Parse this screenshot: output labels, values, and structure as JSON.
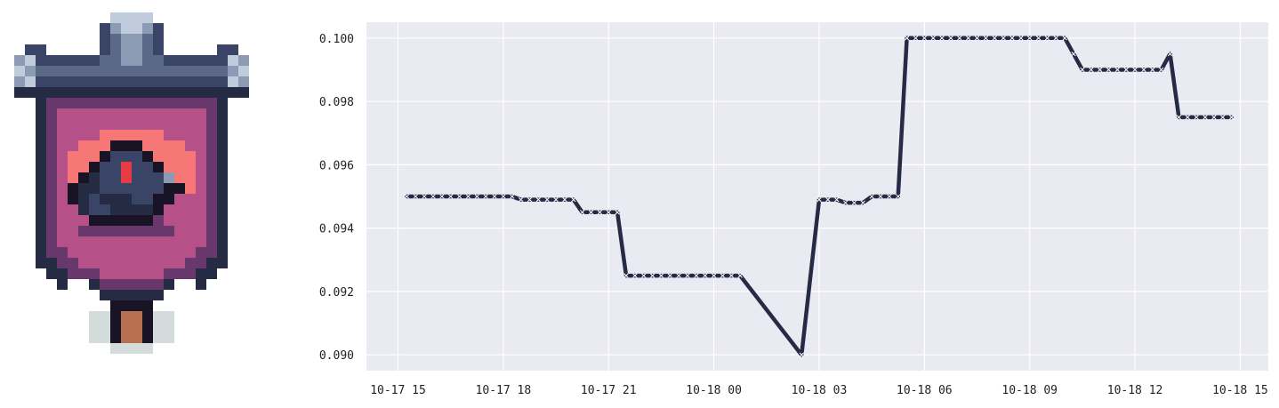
{
  "logo": {
    "name": "pixel-art-banner-emblem"
  },
  "colors": {
    "plot_bg": "#eaeaf2",
    "grid": "#ffffff",
    "line": "#262a45",
    "marker": "#ffffff"
  },
  "chart_data": {
    "type": "line",
    "title": "",
    "xlabel": "",
    "ylabel": "",
    "grid": true,
    "marker": "x",
    "x_ticks": [
      "10-17 15",
      "10-17 18",
      "10-17 21",
      "10-18 00",
      "10-18 03",
      "10-18 06",
      "10-18 09",
      "10-18 12",
      "10-18 15"
    ],
    "y_ticks": [
      "0.090",
      "0.092",
      "0.094",
      "0.096",
      "0.098",
      "0.100"
    ],
    "ylim": [
      0.0895,
      0.1005
    ],
    "xlim": [
      "2024-10-17 14:06",
      "2024-10-18 15:48"
    ],
    "series": [
      {
        "x": [
          "2024-10-17 15:15",
          "2024-10-17 15:30",
          "2024-10-17 15:45",
          "2024-10-17 16:00",
          "2024-10-17 16:15",
          "2024-10-17 16:30",
          "2024-10-17 16:45",
          "2024-10-17 17:00",
          "2024-10-17 17:15",
          "2024-10-17 17:30",
          "2024-10-17 17:45",
          "2024-10-17 18:00",
          "2024-10-17 18:15",
          "2024-10-17 18:30",
          "2024-10-17 18:45",
          "2024-10-17 19:00",
          "2024-10-17 19:15",
          "2024-10-17 19:30",
          "2024-10-17 19:45",
          "2024-10-17 20:00",
          "2024-10-17 20:15",
          "2024-10-17 20:30",
          "2024-10-17 20:45",
          "2024-10-17 21:00",
          "2024-10-17 21:15",
          "2024-10-17 21:30",
          "2024-10-17 21:45",
          "2024-10-17 22:00",
          "2024-10-17 22:15",
          "2024-10-17 22:30",
          "2024-10-17 22:45",
          "2024-10-17 23:00",
          "2024-10-17 23:15",
          "2024-10-17 23:30",
          "2024-10-17 23:45",
          "2024-10-18 00:00",
          "2024-10-18 00:15",
          "2024-10-18 00:30",
          "2024-10-18 00:45",
          "2024-10-18 02:30",
          "2024-10-18 03:00",
          "2024-10-18 03:15",
          "2024-10-18 03:30",
          "2024-10-18 03:45",
          "2024-10-18 04:00",
          "2024-10-18 04:15",
          "2024-10-18 04:30",
          "2024-10-18 04:45",
          "2024-10-18 05:00",
          "2024-10-18 05:15",
          "2024-10-18 05:30",
          "2024-10-18 05:45",
          "2024-10-18 06:00",
          "2024-10-18 06:15",
          "2024-10-18 06:30",
          "2024-10-18 06:45",
          "2024-10-18 07:00",
          "2024-10-18 07:15",
          "2024-10-18 07:30",
          "2024-10-18 07:45",
          "2024-10-18 08:00",
          "2024-10-18 08:15",
          "2024-10-18 08:30",
          "2024-10-18 08:45",
          "2024-10-18 09:00",
          "2024-10-18 09:15",
          "2024-10-18 09:30",
          "2024-10-18 09:45",
          "2024-10-18 10:00",
          "2024-10-18 10:15",
          "2024-10-18 10:30",
          "2024-10-18 10:45",
          "2024-10-18 11:00",
          "2024-10-18 11:15",
          "2024-10-18 11:30",
          "2024-10-18 11:45",
          "2024-10-18 12:00",
          "2024-10-18 12:15",
          "2024-10-18 12:30",
          "2024-10-18 12:45",
          "2024-10-18 13:00",
          "2024-10-18 13:15",
          "2024-10-18 13:30",
          "2024-10-18 13:45",
          "2024-10-18 14:00",
          "2024-10-18 14:15",
          "2024-10-18 14:30",
          "2024-10-18 14:45"
        ],
        "y": [
          0.095,
          0.095,
          0.095,
          0.095,
          0.095,
          0.095,
          0.095,
          0.095,
          0.095,
          0.095,
          0.095,
          0.095,
          0.095,
          0.0949,
          0.0949,
          0.0949,
          0.0949,
          0.0949,
          0.0949,
          0.0949,
          0.0945,
          0.0945,
          0.0945,
          0.0945,
          0.0945,
          0.0925,
          0.0925,
          0.0925,
          0.0925,
          0.0925,
          0.0925,
          0.0925,
          0.0925,
          0.0925,
          0.0925,
          0.0925,
          0.0925,
          0.0925,
          0.0925,
          0.09,
          0.0949,
          0.0949,
          0.0949,
          0.0948,
          0.0948,
          0.0948,
          0.095,
          0.095,
          0.095,
          0.095,
          0.1,
          0.1,
          0.1,
          0.1,
          0.1,
          0.1,
          0.1,
          0.1,
          0.1,
          0.1,
          0.1,
          0.1,
          0.1,
          0.1,
          0.1,
          0.1,
          0.1,
          0.1,
          0.1,
          0.0995,
          0.099,
          0.099,
          0.099,
          0.099,
          0.099,
          0.099,
          0.099,
          0.099,
          0.099,
          0.099,
          0.0995,
          0.0975,
          0.0975,
          0.0975,
          0.0975,
          0.0975,
          0.0975,
          0.0975
        ]
      }
    ]
  }
}
